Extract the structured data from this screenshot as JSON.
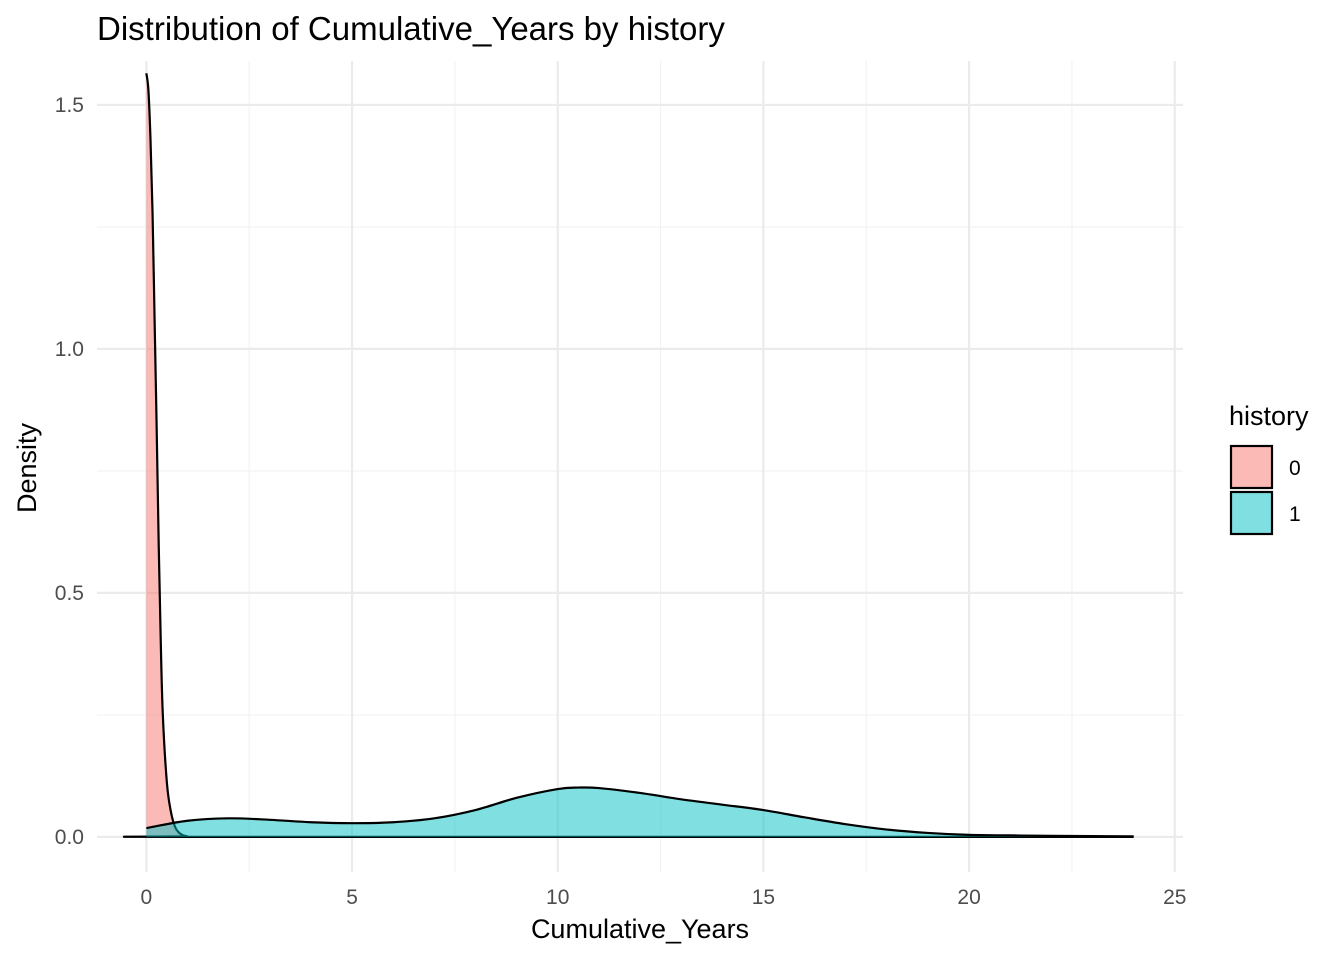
{
  "chart_data": {
    "type": "area",
    "subtype": "density",
    "title": "Distribution of Cumulative_Years by history",
    "xlabel": "Cumulative_Years",
    "ylabel": "Density",
    "xlim": [
      -1.2,
      25.2
    ],
    "ylim": [
      -0.072,
      1.59
    ],
    "x_ticks": [
      0,
      5,
      10,
      15,
      20,
      25
    ],
    "x_tick_labels": [
      "0",
      "5",
      "10",
      "15",
      "20",
      "25"
    ],
    "y_ticks": [
      0.0,
      0.5,
      1.0,
      1.5
    ],
    "y_tick_labels": [
      "0.0",
      "0.5",
      "1.0",
      "1.5"
    ],
    "grid": true,
    "legend": {
      "title": "history",
      "position": "right",
      "entries": [
        "0",
        "1"
      ]
    },
    "series": [
      {
        "name": "0",
        "color": "#F8766D",
        "points": [
          [
            0,
            1.565
          ],
          [
            0.05,
            1.53
          ],
          [
            0.1,
            1.43
          ],
          [
            0.15,
            1.28
          ],
          [
            0.2,
            1.06
          ],
          [
            0.25,
            0.84
          ],
          [
            0.3,
            0.6
          ],
          [
            0.35,
            0.4
          ],
          [
            0.4,
            0.25
          ],
          [
            0.5,
            0.11
          ],
          [
            0.6,
            0.05
          ],
          [
            0.7,
            0.02
          ],
          [
            0.8,
            0.008
          ],
          [
            0.9,
            0.003
          ],
          [
            1.0,
            0.001
          ],
          [
            1.2,
            0.0
          ],
          [
            24,
            0.0
          ]
        ]
      },
      {
        "name": "1",
        "color": "#00BFC4",
        "points": [
          [
            0,
            0.018
          ],
          [
            1,
            0.033
          ],
          [
            2,
            0.038
          ],
          [
            3,
            0.035
          ],
          [
            4,
            0.03
          ],
          [
            5,
            0.028
          ],
          [
            6,
            0.03
          ],
          [
            7,
            0.038
          ],
          [
            8,
            0.055
          ],
          [
            9,
            0.08
          ],
          [
            10,
            0.098
          ],
          [
            10.5,
            0.101
          ],
          [
            11,
            0.1
          ],
          [
            12,
            0.09
          ],
          [
            13,
            0.077
          ],
          [
            14,
            0.066
          ],
          [
            15,
            0.055
          ],
          [
            16,
            0.04
          ],
          [
            17,
            0.026
          ],
          [
            18,
            0.015
          ],
          [
            19,
            0.008
          ],
          [
            20,
            0.004
          ],
          [
            21,
            0.003
          ],
          [
            22,
            0.002
          ],
          [
            23,
            0.0015
          ],
          [
            24,
            0.001
          ]
        ]
      }
    ]
  }
}
